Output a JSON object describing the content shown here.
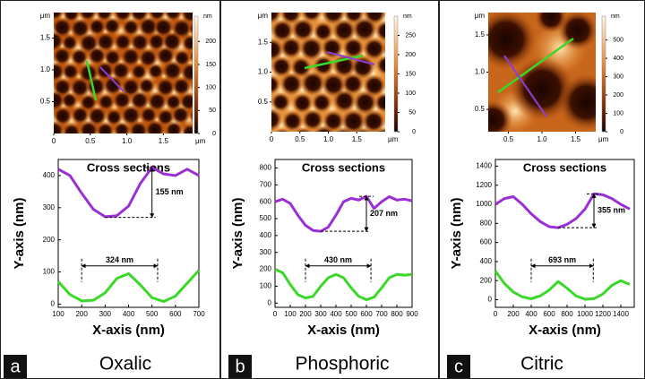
{
  "chart_data": [
    {
      "type": "line",
      "title": "Cross sections",
      "x_label": "X-axis (nm)",
      "y_label": "Y-axis (nm)",
      "x": [
        100,
        150,
        200,
        250,
        300,
        350,
        400,
        450,
        500,
        550,
        600,
        650,
        700
      ],
      "series": [
        {
          "color": "#9a2fd6",
          "values": [
            420,
            400,
            345,
            295,
            272,
            275,
            305,
            375,
            425,
            405,
            400,
            420,
            400
          ]
        },
        {
          "color": "#3ad829",
          "values": [
            70,
            30,
            10,
            12,
            35,
            80,
            95,
            60,
            20,
            8,
            25,
            65,
            105
          ]
        }
      ],
      "xlim": [
        100,
        700
      ],
      "xticks": [
        100,
        200,
        300,
        400,
        500,
        600,
        700
      ],
      "ylim": [
        -10,
        450
      ],
      "yticks": [
        0,
        100,
        200,
        300,
        400
      ],
      "annotations": [
        {
          "text": "155 nm",
          "value": 155
        },
        {
          "text": "324 nm",
          "value": 324
        }
      ]
    },
    {
      "type": "line",
      "title": "Cross sections",
      "x_label": "X-axis (nm)",
      "y_label": "Y-axis (nm)",
      "x": [
        0,
        50,
        100,
        150,
        200,
        250,
        300,
        350,
        400,
        450,
        500,
        550,
        600,
        650,
        700,
        750,
        800,
        850,
        900
      ],
      "series": [
        {
          "color": "#9a2fd6",
          "values": [
            600,
            615,
            590,
            520,
            460,
            430,
            425,
            450,
            520,
            600,
            620,
            610,
            632,
            560,
            600,
            630,
            610,
            615,
            605
          ]
        },
        {
          "color": "#3ad829",
          "values": [
            200,
            180,
            110,
            50,
            30,
            40,
            100,
            150,
            170,
            150,
            90,
            40,
            20,
            35,
            90,
            150,
            170,
            165,
            170
          ]
        }
      ],
      "xlim": [
        0,
        900
      ],
      "xticks": [
        0,
        100,
        200,
        300,
        400,
        500,
        600,
        700,
        800,
        900
      ],
      "ylim": [
        -25,
        850
      ],
      "yticks": [
        0,
        100,
        200,
        300,
        400,
        500,
        600,
        700,
        800
      ],
      "annotations": [
        {
          "text": "207 nm",
          "value": 207
        },
        {
          "text": "430 nm",
          "value": 430
        }
      ]
    },
    {
      "type": "line",
      "title": "Cross sections",
      "x_label": "X-axis (nm)",
      "y_label": "Y-axis (nm)",
      "x": [
        0,
        100,
        200,
        300,
        400,
        500,
        600,
        700,
        800,
        900,
        1000,
        1100,
        1200,
        1300,
        1400,
        1500
      ],
      "series": [
        {
          "color": "#9a2fd6",
          "values": [
            1000,
            1060,
            1080,
            1000,
            900,
            820,
            765,
            755,
            790,
            850,
            950,
            1110,
            1100,
            1060,
            1000,
            950
          ]
        },
        {
          "color": "#3ad829",
          "values": [
            300,
            170,
            80,
            30,
            10,
            40,
            100,
            190,
            120,
            40,
            5,
            10,
            60,
            150,
            200,
            160
          ]
        }
      ],
      "xlim": [
        0,
        1550
      ],
      "xticks": [
        0,
        200,
        400,
        600,
        800,
        1000,
        1200,
        1400
      ],
      "ylim": [
        -80,
        1470
      ],
      "yticks": [
        0,
        200,
        400,
        600,
        800,
        1000,
        1200,
        1400
      ],
      "annotations": [
        {
          "text": "355 nm",
          "value": 355
        },
        {
          "text": "693 nm",
          "value": 693
        }
      ]
    }
  ],
  "panels": [
    {
      "label": "a",
      "name": "Oxalic",
      "afm": {
        "unit": "μm",
        "xlim": [
          0,
          1.9
        ],
        "xticks": [
          0,
          0.5,
          {
            "value": 1,
            "label": "1.0"
          },
          1.5
        ],
        "ylim": [
          0,
          1.9
        ],
        "yticks": [
          0.5,
          {
            "value": 1,
            "label": "1.0"
          },
          1.5
        ],
        "colorbar": {
          "unit": "nm",
          "lim": [
            0,
            255
          ],
          "ticks": [
            0,
            50,
            100,
            150,
            200
          ]
        }
      }
    },
    {
      "label": "b",
      "name": "Phosphoric",
      "afm": {
        "unit": "μm",
        "xlim": [
          0,
          2
        ],
        "xticks": [
          0,
          0.5,
          {
            "value": 1,
            "label": "1.0"
          },
          1.5
        ],
        "ylim": [
          0,
          2
        ],
        "yticks": [
          0.5,
          {
            "value": 1,
            "label": "1.0"
          },
          1.5
        ],
        "colorbar": {
          "unit": "nm",
          "lim": [
            0,
            300
          ],
          "ticks": [
            0,
            50,
            100,
            150,
            200,
            250
          ]
        }
      }
    },
    {
      "label": "c",
      "name": "Citric",
      "afm": {
        "unit": "μm",
        "xlim": [
          0.2,
          1.8
        ],
        "xticks": [
          0.5,
          {
            "value": 1,
            "label": "1.0"
          },
          1.5
        ],
        "ylim": [
          0.2,
          1.8
        ],
        "yticks": [
          0.5,
          {
            "value": 1,
            "label": "1.0"
          },
          1.5
        ],
        "colorbar": {
          "unit": "nm",
          "lim": [
            0,
            630
          ],
          "ticks": [
            0,
            100,
            200,
            300,
            400,
            500
          ]
        }
      }
    }
  ]
}
